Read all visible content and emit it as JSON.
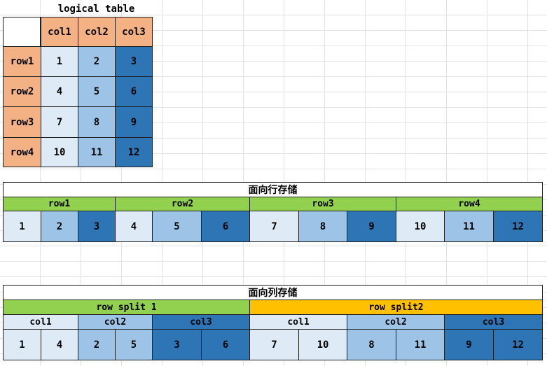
{
  "logical": {
    "title": "logical table",
    "cols": [
      "col1",
      "col2",
      "col3"
    ],
    "rows": [
      "row1",
      "row2",
      "row3",
      "row4"
    ],
    "cells": [
      [
        "1",
        "2",
        "3"
      ],
      [
        "4",
        "5",
        "6"
      ],
      [
        "7",
        "8",
        "9"
      ],
      [
        "10",
        "11",
        "12"
      ]
    ]
  },
  "row_storage": {
    "title": "面向行存储",
    "groups": [
      "row1",
      "row2",
      "row3",
      "row4"
    ],
    "values": [
      "1",
      "2",
      "3",
      "4",
      "5",
      "6",
      "7",
      "8",
      "9",
      "10",
      "11",
      "12"
    ]
  },
  "col_storage": {
    "title": "面向列存储",
    "splits": [
      "row split 1",
      "row split2"
    ],
    "cols": [
      "col1",
      "col2",
      "col3",
      "col1",
      "col2",
      "col3"
    ],
    "values": [
      "1",
      "4",
      "2",
      "5",
      "3",
      "6",
      "7",
      "10",
      "8",
      "11",
      "9",
      "12"
    ]
  },
  "colors": {
    "header_orange": "#f4b183",
    "blue_light": "#deebf7",
    "blue_mid": "#9dc3e6",
    "blue_dark": "#2e75b6",
    "green": "#92d050",
    "gold": "#ffc000"
  }
}
